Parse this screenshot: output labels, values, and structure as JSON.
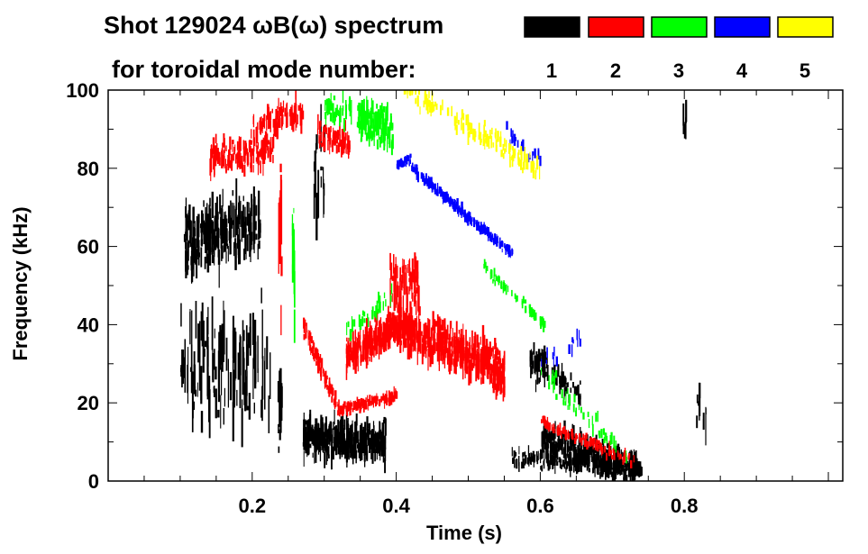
{
  "chart_data": {
    "type": "heatmap",
    "title": "Shot 129024 ωB(ω) spectrum",
    "legend_title": "for toroidal mode number:",
    "legend_placement": "top-right",
    "legend": [
      {
        "mode": "1",
        "color": "#000000"
      },
      {
        "mode": "2",
        "color": "#ff0000"
      },
      {
        "mode": "3",
        "color": "#00ff00"
      },
      {
        "mode": "4",
        "color": "#0000ff"
      },
      {
        "mode": "5",
        "color": "#ffff00"
      }
    ],
    "xlabel": "Time (s)",
    "ylabel": "Frequency (kHz)",
    "xlim": [
      0,
      1.02
    ],
    "ylim": [
      0,
      100
    ],
    "xticks": [
      "0.2",
      "0.4",
      "0.6",
      "0.8"
    ],
    "xtick_values": [
      0.2,
      0.4,
      0.6,
      0.8
    ],
    "yticks": [
      "0",
      "20",
      "40",
      "60",
      "80",
      "100"
    ],
    "ytick_values": [
      0,
      20,
      40,
      60,
      80,
      100
    ],
    "features": [
      {
        "mode": 1,
        "t": [
          0.105,
          0.21
        ],
        "f": [
          60,
          66
        ],
        "spread": 12,
        "density": 3
      },
      {
        "mode": 1,
        "t": [
          0.1,
          0.225
        ],
        "f": [
          30,
          30
        ],
        "spread": 22,
        "density": 1.2
      },
      {
        "mode": 1,
        "t": [
          0.235,
          0.24
        ],
        "f": [
          20,
          20
        ],
        "spread": 16,
        "density": 2
      },
      {
        "mode": 1,
        "t": [
          0.285,
          0.3
        ],
        "f": [
          75,
          75
        ],
        "spread": 20,
        "density": 1
      },
      {
        "mode": 1,
        "t": [
          0.27,
          0.385
        ],
        "f": [
          11,
          10
        ],
        "spread": 7,
        "density": 4
      },
      {
        "mode": 1,
        "t": [
          0.585,
          0.61
        ],
        "f": [
          31,
          28
        ],
        "spread": 6,
        "density": 2
      },
      {
        "mode": 1,
        "t": [
          0.615,
          0.655
        ],
        "f": [
          27,
          22
        ],
        "spread": 4,
        "density": 1.5
      },
      {
        "mode": 1,
        "t": [
          0.56,
          0.74
        ],
        "f": [
          6,
          3
        ],
        "spread": 3,
        "density": 1.5
      },
      {
        "mode": 1,
        "t": [
          0.6,
          0.735
        ],
        "f": [
          11,
          3
        ],
        "spread": 6,
        "density": 3
      },
      {
        "mode": 1,
        "t": [
          0.797,
          0.802
        ],
        "f": [
          92,
          92
        ],
        "spread": 8,
        "density": 1
      },
      {
        "mode": 1,
        "t": [
          0.815,
          0.83
        ],
        "f": [
          22,
          15
        ],
        "spread": 15,
        "density": 0.6
      },
      {
        "mode": 2,
        "t": [
          0.14,
          0.23
        ],
        "f": [
          83,
          85
        ],
        "spread": 6,
        "density": 1.8
      },
      {
        "mode": 2,
        "t": [
          0.2,
          0.27
        ],
        "f": [
          90,
          94
        ],
        "spread": 6,
        "density": 1.5
      },
      {
        "mode": 2,
        "t": [
          0.236,
          0.24
        ],
        "f": [
          60,
          60
        ],
        "spread": 35,
        "density": 1.5
      },
      {
        "mode": 2,
        "t": [
          0.29,
          0.335
        ],
        "f": [
          89,
          86
        ],
        "spread": 5,
        "density": 1.8
      },
      {
        "mode": 2,
        "t": [
          0.27,
          0.32
        ],
        "f": [
          40,
          18
        ],
        "spread": 3,
        "density": 2
      },
      {
        "mode": 2,
        "t": [
          0.32,
          0.4
        ],
        "f": [
          18,
          22
        ],
        "spread": 2,
        "density": 2
      },
      {
        "mode": 2,
        "t": [
          0.33,
          0.4
        ],
        "f": [
          32,
          40
        ],
        "spread": 6,
        "density": 4
      },
      {
        "mode": 2,
        "t": [
          0.4,
          0.55
        ],
        "f": [
          40,
          28
        ],
        "spread": 8,
        "density": 4
      },
      {
        "mode": 2,
        "t": [
          0.39,
          0.43
        ],
        "f": [
          52,
          50
        ],
        "spread": 10,
        "density": 2
      },
      {
        "mode": 2,
        "t": [
          0.6,
          0.73
        ],
        "f": [
          15,
          5
        ],
        "spread": 2,
        "density": 1.2
      },
      {
        "mode": 3,
        "t": [
          0.255,
          0.258
        ],
        "f": [
          60,
          60
        ],
        "spread": 38,
        "density": 1.5
      },
      {
        "mode": 3,
        "t": [
          0.345,
          0.395
        ],
        "f": [
          92,
          90
        ],
        "spread": 7,
        "density": 3
      },
      {
        "mode": 3,
        "t": [
          0.3,
          0.34
        ],
        "f": [
          95,
          95
        ],
        "spread": 5,
        "density": 1.2
      },
      {
        "mode": 3,
        "t": [
          0.33,
          0.395
        ],
        "f": [
          38,
          48
        ],
        "spread": 4,
        "density": 0.6
      },
      {
        "mode": 3,
        "t": [
          0.52,
          0.605
        ],
        "f": [
          55,
          40
        ],
        "spread": 2,
        "density": 1
      },
      {
        "mode": 3,
        "t": [
          0.6,
          0.72
        ],
        "f": [
          28,
          6
        ],
        "spread": 4,
        "density": 0.5
      },
      {
        "mode": 4,
        "t": [
          0.4,
          0.42
        ],
        "f": [
          81,
          82
        ],
        "spread": 1.5,
        "density": 2
      },
      {
        "mode": 4,
        "t": [
          0.42,
          0.56
        ],
        "f": [
          80,
          58
        ],
        "spread": 1.8,
        "density": 2
      },
      {
        "mode": 4,
        "t": [
          0.55,
          0.6
        ],
        "f": [
          90,
          82
        ],
        "spread": 4,
        "density": 0.5
      },
      {
        "mode": 4,
        "t": [
          0.6,
          0.66
        ],
        "f": [
          30,
          38
        ],
        "spread": 4,
        "density": 0.3
      },
      {
        "mode": 5,
        "t": [
          0.41,
          0.6
        ],
        "f": [
          100,
          80
        ],
        "spread": 4,
        "density": 0.9
      }
    ]
  }
}
